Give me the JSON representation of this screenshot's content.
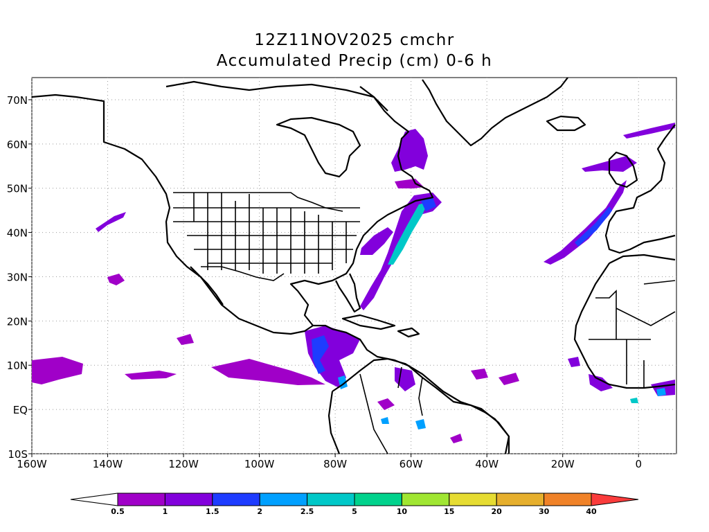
{
  "title_line1": "12Z11NOV2025 cmchr",
  "title_line2": "Accumulated Precip (cm) 0-6 h",
  "map": {
    "lon_range": [
      -160,
      10
    ],
    "lat_range": [
      -10,
      75
    ],
    "grid": true,
    "lon_ticks": [
      {
        "value": -160,
        "label": "160W"
      },
      {
        "value": -140,
        "label": "140W"
      },
      {
        "value": -120,
        "label": "120W"
      },
      {
        "value": -100,
        "label": "100W"
      },
      {
        "value": -80,
        "label": "80W"
      },
      {
        "value": -60,
        "label": "60W"
      },
      {
        "value": -40,
        "label": "40W"
      },
      {
        "value": -20,
        "label": "20W"
      },
      {
        "value": 0,
        "label": "0"
      }
    ],
    "lat_ticks": [
      {
        "value": 70,
        "label": "70N"
      },
      {
        "value": 60,
        "label": "60N"
      },
      {
        "value": 50,
        "label": "50N"
      },
      {
        "value": 40,
        "label": "40N"
      },
      {
        "value": 30,
        "label": "30N"
      },
      {
        "value": 20,
        "label": "20N"
      },
      {
        "value": 10,
        "label": "10N"
      },
      {
        "value": 0,
        "label": "EQ"
      },
      {
        "value": -10,
        "label": "10S"
      }
    ]
  },
  "colorbar": {
    "levels": [
      "0.5",
      "1",
      "1.5",
      "2",
      "2.5",
      "5",
      "10",
      "15",
      "20",
      "30",
      "40"
    ],
    "colors": [
      "#a000c8",
      "#8200dc",
      "#1e3cff",
      "#00a0ff",
      "#00c8c8",
      "#00d28c",
      "#a0e632",
      "#e6dc32",
      "#e6af2d",
      "#f08228",
      "#fa3c3c"
    ]
  }
}
